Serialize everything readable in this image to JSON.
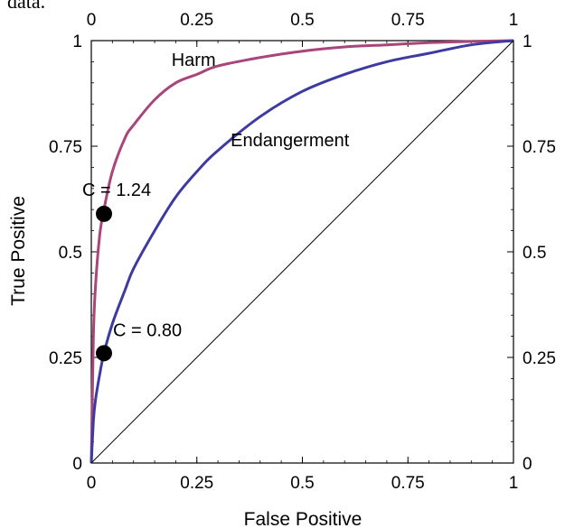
{
  "header_fragment": "data.",
  "chart_data": {
    "type": "line",
    "title": "",
    "xlabel": "False Positive",
    "ylabel": "True Positive",
    "xlim": [
      0,
      1
    ],
    "ylim": [
      0,
      1
    ],
    "x_ticks": [
      "0",
      "0.25",
      "0.5",
      "0.75",
      "1"
    ],
    "x_ticks_top": [
      "0",
      "0.25",
      "0.5",
      "0.75",
      "1"
    ],
    "y_ticks": [
      "0",
      "0.25",
      "0.5",
      "0.75",
      "1"
    ],
    "y_ticks_right": [
      "0",
      "0.25",
      "0.5",
      "0.75",
      "1"
    ],
    "grid": false,
    "series": [
      {
        "name": "Harm",
        "color": "#a8457a",
        "x": [
          0,
          0.005,
          0.01,
          0.02,
          0.03,
          0.05,
          0.08,
          0.1,
          0.15,
          0.2,
          0.25,
          0.3,
          0.4,
          0.5,
          0.6,
          0.7,
          0.8,
          0.9,
          1.0
        ],
        "y": [
          0,
          0.3,
          0.42,
          0.54,
          0.6,
          0.69,
          0.77,
          0.8,
          0.86,
          0.9,
          0.92,
          0.94,
          0.96,
          0.975,
          0.985,
          0.99,
          0.995,
          0.998,
          1.0
        ]
      },
      {
        "name": "Endangerment",
        "color": "#3d3ba0",
        "x": [
          0,
          0.005,
          0.01,
          0.02,
          0.03,
          0.05,
          0.08,
          0.1,
          0.15,
          0.2,
          0.25,
          0.3,
          0.4,
          0.5,
          0.6,
          0.7,
          0.8,
          0.9,
          1.0
        ],
        "y": [
          0,
          0.1,
          0.15,
          0.21,
          0.26,
          0.33,
          0.41,
          0.46,
          0.55,
          0.63,
          0.69,
          0.74,
          0.82,
          0.88,
          0.92,
          0.95,
          0.97,
          0.99,
          1.0
        ]
      },
      {
        "name": "",
        "color": "#000000",
        "x": [
          0,
          1
        ],
        "y": [
          0,
          1
        ]
      }
    ],
    "points": [
      {
        "label": "C = 1.24",
        "x": 0.03,
        "y": 0.59
      },
      {
        "label": "C = 0.80",
        "x": 0.03,
        "y": 0.26
      }
    ],
    "annotations": [
      {
        "text": "Harm",
        "x": 0.19,
        "y": 0.955
      },
      {
        "text": "Endangerment",
        "x": 0.33,
        "y": 0.765
      }
    ]
  }
}
